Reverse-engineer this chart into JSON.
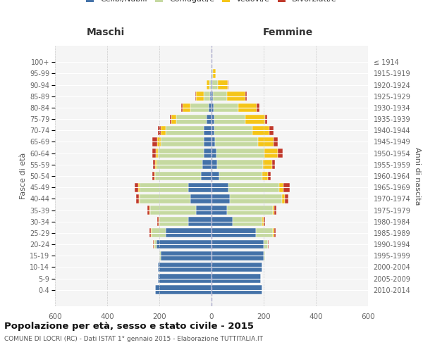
{
  "age_groups": [
    "0-4",
    "5-9",
    "10-14",
    "15-19",
    "20-24",
    "25-29",
    "30-34",
    "35-39",
    "40-44",
    "45-49",
    "50-54",
    "55-59",
    "60-64",
    "65-69",
    "70-74",
    "75-79",
    "80-84",
    "85-89",
    "90-94",
    "95-99",
    "100+"
  ],
  "birth_years": [
    "2010-2014",
    "2005-2009",
    "2000-2004",
    "1995-1999",
    "1990-1994",
    "1985-1989",
    "1980-1984",
    "1975-1979",
    "1970-1974",
    "1965-1969",
    "1960-1964",
    "1955-1959",
    "1950-1954",
    "1945-1949",
    "1940-1944",
    "1935-1939",
    "1930-1934",
    "1925-1929",
    "1920-1924",
    "1915-1919",
    "≤ 1914"
  ],
  "maschi": {
    "celibi": [
      215,
      205,
      205,
      195,
      210,
      175,
      90,
      60,
      80,
      90,
      40,
      35,
      30,
      30,
      30,
      20,
      12,
      5,
      3,
      1,
      0
    ],
    "coniugati": [
      0,
      0,
      0,
      5,
      10,
      55,
      110,
      175,
      195,
      185,
      175,
      175,
      175,
      165,
      145,
      115,
      70,
      25,
      5,
      1,
      0
    ],
    "vedovi": [
      0,
      0,
      0,
      0,
      2,
      2,
      2,
      2,
      3,
      5,
      5,
      5,
      8,
      12,
      20,
      20,
      30,
      30,
      10,
      2,
      0
    ],
    "divorziati": [
      0,
      0,
      0,
      0,
      2,
      5,
      5,
      8,
      10,
      15,
      8,
      10,
      15,
      20,
      10,
      5,
      5,
      2,
      0,
      0,
      0
    ]
  },
  "femmine": {
    "nubili": [
      195,
      190,
      195,
      200,
      200,
      170,
      80,
      60,
      70,
      65,
      30,
      22,
      18,
      14,
      12,
      10,
      8,
      5,
      3,
      2,
      0
    ],
    "coniugate": [
      0,
      0,
      0,
      5,
      15,
      65,
      115,
      175,
      200,
      195,
      165,
      175,
      185,
      165,
      145,
      120,
      95,
      55,
      20,
      3,
      0
    ],
    "vedove": [
      0,
      0,
      0,
      0,
      2,
      5,
      5,
      5,
      10,
      15,
      20,
      35,
      50,
      60,
      65,
      75,
      70,
      70,
      40,
      10,
      0
    ],
    "divorziate": [
      0,
      0,
      0,
      0,
      2,
      5,
      5,
      8,
      15,
      25,
      12,
      12,
      20,
      15,
      15,
      8,
      10,
      5,
      2,
      0,
      0
    ]
  },
  "colors": {
    "celibi_nubili": "#4472a8",
    "coniugati": "#c5d9a0",
    "vedovi": "#f5c518",
    "divorziati": "#c0392b"
  },
  "xlim": 600,
  "title": "Popolazione per età, sesso e stato civile - 2015",
  "subtitle": "COMUNE DI LOCRI (RC) - Dati ISTAT 1° gennaio 2015 - Elaborazione TUTTITALIA.IT",
  "xlabel_left": "Maschi",
  "xlabel_right": "Femmine",
  "ylabel_left": "Fasce di età",
  "ylabel_right": "Anni di nascita",
  "bg_color": "#f5f5f5",
  "grid_color": "#cccccc"
}
